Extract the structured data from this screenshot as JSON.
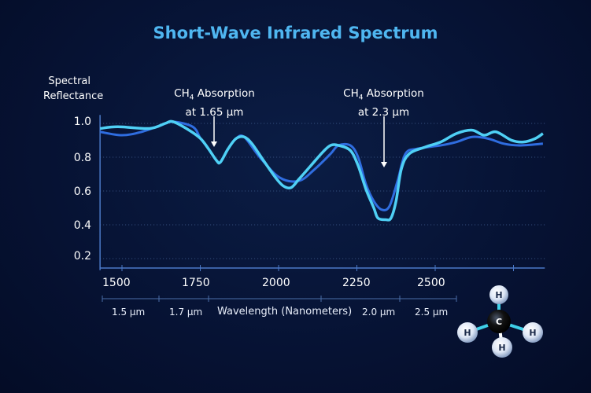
{
  "chart_data": {
    "type": "line",
    "title": "Short-Wave Infrared Spectrum",
    "ylabel": "Spectral Reflectance",
    "xlabel": "Wavelength (Nanometers)",
    "xlim": [
      1430,
      2850
    ],
    "ylim": [
      0.15,
      1.05
    ],
    "x_ticks": [
      "1500",
      "1750",
      "2000",
      "2250",
      "2500"
    ],
    "y_ticks": [
      "1.0",
      "0.8",
      "0.6",
      "0.4",
      "0.2"
    ],
    "secondary_x_labels": [
      "1.5 µm",
      "1.7 µm",
      "2.0 µm",
      "2.5 µm"
    ],
    "grid": "horizontal dotted",
    "colors": {
      "series_light": "#4fd0f5",
      "series_dark": "#2f6de0",
      "title": "#4fb6f0"
    },
    "annotations": [
      {
        "line1_pre": "CH",
        "line1_sub": "4",
        "line1_post": " Absorption",
        "line2": "at 1.65 µm",
        "x": 1650,
        "arrow_to": 0.8
      },
      {
        "line1_pre": "CH",
        "line1_sub": "4",
        "line1_post": " Absorption",
        "line2": "at 2.3 µm",
        "x": 2300,
        "arrow_to": 0.62
      }
    ],
    "series": [
      {
        "x": [
          1430,
          1487,
          1588,
          1638,
          1663,
          1714,
          1751,
          1776,
          1802,
          1814,
          1839,
          1864,
          1890,
          1915,
          1952,
          1990,
          2015,
          2040,
          2065,
          2103,
          2141,
          2166,
          2191,
          2229,
          2254,
          2279,
          2304,
          2317,
          2342,
          2359,
          2375,
          2392,
          2417,
          2468,
          2518,
          2568,
          2618,
          2656,
          2694,
          2744,
          2782,
          2819,
          2844
        ],
        "y": [
          0.97,
          0.98,
          0.97,
          1.0,
          1.01,
          0.96,
          0.91,
          0.85,
          0.78,
          0.77,
          0.85,
          0.91,
          0.92,
          0.88,
          0.78,
          0.68,
          0.63,
          0.62,
          0.67,
          0.75,
          0.83,
          0.87,
          0.87,
          0.84,
          0.75,
          0.61,
          0.5,
          0.44,
          0.43,
          0.44,
          0.54,
          0.73,
          0.82,
          0.86,
          0.89,
          0.94,
          0.96,
          0.93,
          0.95,
          0.9,
          0.89,
          0.91,
          0.94
        ]
      },
      {
        "x": [
          1430,
          1500,
          1563,
          1626,
          1663,
          1726,
          1751,
          1776,
          1802,
          1814,
          1839,
          1864,
          1890,
          1940,
          2003,
          2065,
          2116,
          2166,
          2191,
          2229,
          2254,
          2279,
          2304,
          2329,
          2354,
          2380,
          2405,
          2443,
          2518,
          2568,
          2618,
          2669,
          2719,
          2769,
          2844
        ],
        "y": [
          0.95,
          0.93,
          0.95,
          0.99,
          1.01,
          0.98,
          0.91,
          0.85,
          0.78,
          0.77,
          0.85,
          0.91,
          0.92,
          0.8,
          0.68,
          0.66,
          0.73,
          0.82,
          0.87,
          0.87,
          0.8,
          0.64,
          0.54,
          0.49,
          0.51,
          0.66,
          0.82,
          0.85,
          0.87,
          0.89,
          0.92,
          0.91,
          0.88,
          0.87,
          0.88
        ]
      }
    ]
  },
  "molecule": {
    "center": "C",
    "atoms": [
      "H",
      "H",
      "H",
      "H"
    ]
  }
}
